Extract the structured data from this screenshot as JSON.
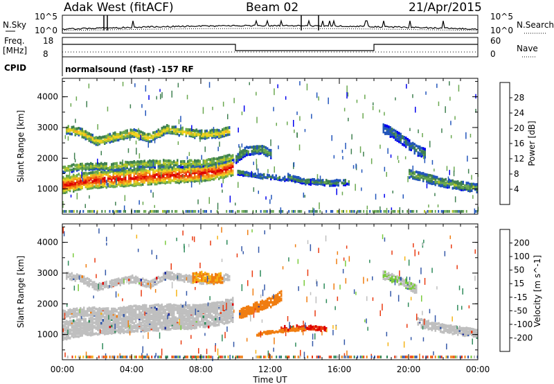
{
  "header": {
    "station": "Adak West (fitACF)",
    "beam": "Beam 02",
    "date": "21/Apr/2015"
  },
  "top_panel": {
    "left_label": "N.Sky",
    "right_label": "N.Search",
    "left_ticks": [
      "10^5",
      "10^0"
    ],
    "right_ticks": [
      "10^5",
      "10^0"
    ]
  },
  "freq_panel": {
    "left_label_1": "Freq.",
    "left_label_2": "[MHz]",
    "right_label": "Nave",
    "left_ticks": [
      "18",
      "8"
    ],
    "right_ticks": [
      "60",
      "0"
    ]
  },
  "cpid_panel": {
    "label": "CPID",
    "program": "normalsound (fast) -157 RF"
  },
  "colors": {
    "power": [
      "#0000ee",
      "#2255bb",
      "#3f8050",
      "#6aa84f",
      "#b6c52a",
      "#f2d21c",
      "#f5a623",
      "#f07a10",
      "#ee4010",
      "#dd0000"
    ],
    "velocity": [
      "#1f2fa0",
      "#3458a8",
      "#2e8a5a",
      "#7acb3c",
      "#bfbfbf",
      "#f5b315",
      "#f07d10",
      "#ea3a10",
      "#dd0000"
    ]
  },
  "chart_data": [
    {
      "type": "heatmap",
      "title": "",
      "xlabel": "Time UT",
      "ylabel": "Slant Range [km]",
      "xlim": [
        "00:00",
        "24:00"
      ],
      "ylim": [
        180,
        4600
      ],
      "x_ticks": [
        "00:00",
        "04:00",
        "08:00",
        "12:00",
        "16:00",
        "20:00",
        "00:00"
      ],
      "y_ticks": [
        "1000",
        "2000",
        "3000",
        "4000"
      ],
      "colorbar": {
        "label": "Power [dB]",
        "ticks": [
          "4",
          "8",
          "12",
          "16",
          "20",
          "24",
          "28"
        ],
        "range": [
          0,
          30
        ]
      },
      "bands": [
        {
          "t": [
            0,
            1,
            2,
            3,
            4,
            5,
            6,
            7,
            8,
            9,
            9.8
          ],
          "r": [
            1180,
            1280,
            1350,
            1380,
            1420,
            1460,
            1500,
            1520,
            1560,
            1640,
            1760
          ],
          "width_km": 500,
          "level": 27
        },
        {
          "t": [
            0,
            1,
            2,
            3,
            4,
            5,
            6,
            7,
            8,
            9,
            9.8
          ],
          "r": [
            1700,
            1780,
            1800,
            1780,
            1860,
            1880,
            1900,
            1880,
            1900,
            1980,
            2100
          ],
          "width_km": 220,
          "level": 13
        },
        {
          "t": [
            0.2,
            1,
            2,
            3,
            4,
            5,
            6,
            7,
            8,
            9,
            9.6
          ],
          "r": [
            2980,
            2900,
            2600,
            2750,
            2870,
            2700,
            3000,
            2900,
            2820,
            2850,
            2950
          ],
          "width_km": 240,
          "level": 17
        },
        {
          "t": [
            10,
            11,
            12,
            13,
            14,
            15
          ],
          "r": [
            1600,
            1500,
            1450,
            1380,
            1300,
            1270
          ],
          "width_km": 120,
          "level": 8
        },
        {
          "t": [
            10,
            10.6,
            11.5,
            12
          ],
          "r": [
            2050,
            2300,
            2350,
            2200
          ],
          "width_km": 260,
          "level": 9
        },
        {
          "t": [
            13,
            14,
            15.5,
            16.5
          ],
          "r": [
            1450,
            1300,
            1250,
            1280
          ],
          "width_km": 160,
          "level": 9
        },
        {
          "t": [
            18.5,
            19,
            19.5,
            20,
            20.5,
            21
          ],
          "r": [
            3000,
            2900,
            2700,
            2500,
            2300,
            2200
          ],
          "width_km": 300,
          "level": 7
        },
        {
          "t": [
            20,
            21,
            22,
            23,
            24
          ],
          "r": [
            1550,
            1400,
            1250,
            1150,
            1080
          ],
          "width_km": 240,
          "level": 11
        }
      ]
    },
    {
      "type": "heatmap",
      "title": "",
      "xlabel": "Time UT",
      "ylabel": "Slant Range [km]",
      "xlim": [
        "00:00",
        "24:00"
      ],
      "ylim": [
        180,
        4600
      ],
      "x_ticks": [
        "00:00",
        "04:00",
        "08:00",
        "12:00",
        "16:00",
        "20:00",
        "00:00"
      ],
      "y_ticks": [
        "1000",
        "2000",
        "3000",
        "4000"
      ],
      "colorbar": {
        "label": "Velocity [m s^-1]",
        "ticks": [
          "200",
          "100",
          "50",
          "15",
          "-15",
          "-50",
          "-100",
          "-200"
        ],
        "range": [
          -250,
          250
        ]
      },
      "bands": [
        {
          "t": [
            0,
            1,
            2,
            3,
            4,
            5,
            6,
            7,
            8,
            9,
            9.8
          ],
          "r": [
            1180,
            1280,
            1350,
            1380,
            1420,
            1460,
            1500,
            1520,
            1560,
            1640,
            1760
          ],
          "width_km": 560,
          "level": 0
        },
        {
          "t": [
            0,
            1,
            2,
            3,
            4,
            5,
            6,
            7,
            8,
            9,
            9.8
          ],
          "r": [
            1700,
            1780,
            1800,
            1780,
            1860,
            1880,
            1900,
            1880,
            1900,
            1980,
            2100
          ],
          "width_km": 240,
          "level": 0
        },
        {
          "t": [
            0.2,
            1,
            2,
            3,
            4,
            5,
            6,
            7,
            8,
            9,
            9.6
          ],
          "r": [
            2980,
            2900,
            2600,
            2750,
            2870,
            2700,
            3000,
            2900,
            2820,
            2850,
            2950
          ],
          "width_km": 220,
          "level": 0
        },
        {
          "t": [
            7.5,
            8,
            8.6,
            9.2
          ],
          "r": [
            2900,
            2950,
            2850,
            2900
          ],
          "width_km": 300,
          "level": -30
        },
        {
          "t": [
            10.2,
            11,
            12,
            12.6
          ],
          "r": [
            1700,
            1900,
            2100,
            2300
          ],
          "width_km": 280,
          "level": -40
        },
        {
          "t": [
            12.5,
            13.5,
            14.5,
            15.2
          ],
          "r": [
            1250,
            1300,
            1280,
            1230
          ],
          "width_km": 130,
          "level": -150
        },
        {
          "t": [
            11.2,
            12,
            13,
            14
          ],
          "r": [
            1050,
            1150,
            1200,
            1230
          ],
          "width_km": 80,
          "level": -40
        },
        {
          "t": [
            20.5,
            21.5,
            22.5,
            23.5,
            24
          ],
          "r": [
            1450,
            1300,
            1200,
            1120,
            1080
          ],
          "width_km": 240,
          "level": 0
        },
        {
          "t": [
            18.5,
            19.5,
            20.5
          ],
          "r": [
            3000,
            2800,
            2500
          ],
          "width_km": 260,
          "level": 10
        }
      ]
    }
  ],
  "timeline": {
    "freq_step_hours": [
      10,
      18
    ],
    "freq_levels": [
      "high",
      "low",
      "high"
    ]
  }
}
